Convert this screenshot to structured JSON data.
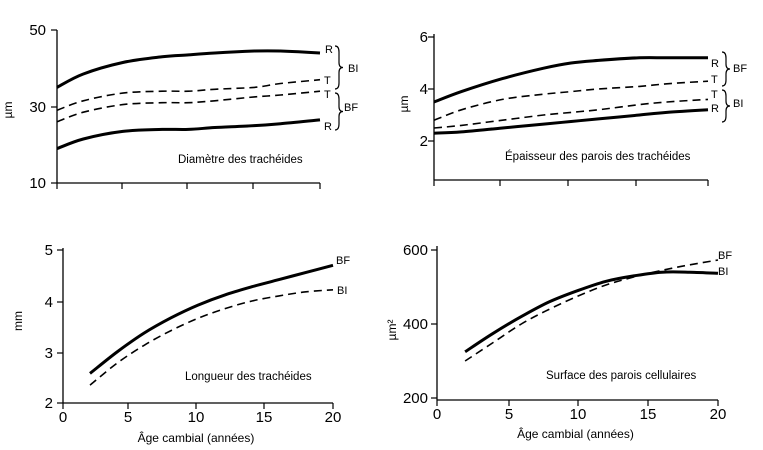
{
  "chart_data": [
    {
      "type": "line",
      "caption": "Diamètre des trachéides",
      "ylabel": "µm",
      "y_ticks": [
        "50",
        "30",
        "10"
      ],
      "ylim": [
        10,
        50
      ],
      "xlim": [
        0,
        20
      ],
      "x_tick_values": [
        0,
        5,
        10,
        15,
        20
      ],
      "x_tick_labels": [],
      "series": [
        {
          "label": "R",
          "style": "solid",
          "x": [
            0,
            2,
            5,
            8,
            10,
            12,
            15,
            17,
            20
          ],
          "values": [
            35,
            38.5,
            41.5,
            43,
            43.5,
            44,
            44.5,
            44.5,
            44
          ]
        },
        {
          "label": "T",
          "style": "dashed",
          "x": [
            0,
            2,
            5,
            8,
            10,
            12,
            15,
            17,
            20
          ],
          "values": [
            29,
            31.5,
            33.5,
            34,
            34,
            34.5,
            35,
            36,
            37
          ]
        },
        {
          "label": "T",
          "style": "dashed",
          "x": [
            0,
            2,
            5,
            8,
            10,
            12,
            15,
            17,
            20
          ],
          "values": [
            26,
            28.5,
            30.5,
            31,
            31,
            31.5,
            32.5,
            33,
            34
          ]
        },
        {
          "label": "R",
          "style": "solid",
          "x": [
            0,
            2,
            5,
            8,
            10,
            12,
            15,
            17,
            20
          ],
          "values": [
            19,
            21.5,
            23.5,
            24,
            24,
            24.5,
            25,
            25.5,
            26.5
          ]
        }
      ],
      "groups": [
        {
          "label": "BI",
          "members": [
            0,
            1
          ]
        },
        {
          "label": "BF",
          "members": [
            2,
            3
          ]
        }
      ]
    },
    {
      "type": "line",
      "caption": "Épaisseur des parois des trachéides",
      "ylabel": "µm",
      "y_ticks": [
        "6",
        "4",
        "2"
      ],
      "ylim": [
        1,
        6.5
      ],
      "xlim": [
        0,
        20
      ],
      "x_tick_values": [
        0,
        5,
        10,
        15,
        20
      ],
      "x_tick_labels": [],
      "series": [
        {
          "label": "R",
          "style": "solid",
          "x": [
            0,
            2,
            5,
            8,
            10,
            12,
            15,
            17,
            20
          ],
          "values": [
            3.5,
            3.9,
            4.4,
            4.8,
            5.0,
            5.1,
            5.2,
            5.2,
            5.2
          ]
        },
        {
          "label": "T",
          "style": "dashed",
          "x": [
            0,
            2,
            5,
            8,
            10,
            12,
            15,
            17,
            20
          ],
          "values": [
            2.8,
            3.2,
            3.6,
            3.8,
            3.9,
            4.0,
            4.1,
            4.2,
            4.3
          ]
        },
        {
          "label": "T",
          "style": "dashed",
          "x": [
            0,
            2,
            5,
            8,
            10,
            12,
            15,
            17,
            20
          ],
          "values": [
            2.5,
            2.6,
            2.8,
            3.0,
            3.1,
            3.2,
            3.4,
            3.5,
            3.6
          ]
        },
        {
          "label": "R",
          "style": "solid",
          "x": [
            0,
            2,
            5,
            8,
            10,
            12,
            15,
            17,
            20
          ],
          "values": [
            2.3,
            2.35,
            2.5,
            2.65,
            2.75,
            2.85,
            3.0,
            3.1,
            3.2
          ]
        }
      ],
      "groups": [
        {
          "label": "BF",
          "members": [
            0,
            1
          ]
        },
        {
          "label": "BI",
          "members": [
            2,
            3
          ]
        }
      ]
    },
    {
      "type": "line",
      "caption": "Longueur des trachéides",
      "ylabel": "mm",
      "y_ticks": [
        "5",
        "4",
        "3",
        "2"
      ],
      "ylim": [
        2,
        5
      ],
      "xlim": [
        0,
        20
      ],
      "x_tick_values": [
        0,
        5,
        10,
        15,
        20
      ],
      "x_tick_labels": [
        "0",
        "5",
        "10",
        "15",
        "20"
      ],
      "series": [
        {
          "label": "BF",
          "style": "solid",
          "x": [
            2,
            4,
            6,
            8,
            10,
            12,
            14,
            16,
            18,
            20
          ],
          "values": [
            2.58,
            3.0,
            3.37,
            3.67,
            3.92,
            4.12,
            4.28,
            4.42,
            4.56,
            4.7
          ]
        },
        {
          "label": "BI",
          "style": "dashed",
          "x": [
            2,
            4,
            6,
            8,
            10,
            12,
            14,
            16,
            18,
            20
          ],
          "values": [
            2.35,
            2.78,
            3.13,
            3.42,
            3.66,
            3.85,
            4.0,
            4.1,
            4.18,
            4.22
          ]
        }
      ],
      "groups": []
    },
    {
      "type": "line",
      "caption": "Surface des parois cellulaires",
      "ylabel": "µm²",
      "y_ticks": [
        "600",
        "400",
        "200"
      ],
      "ylim": [
        200,
        600
      ],
      "xlim": [
        0,
        20
      ],
      "x_tick_values": [
        0,
        5,
        10,
        15,
        20
      ],
      "x_tick_labels": [
        "0",
        "5",
        "10",
        "15",
        "20"
      ],
      "series": [
        {
          "label": "BF",
          "style": "solid",
          "x": [
            2,
            4,
            6,
            8,
            10,
            12,
            14,
            16,
            18,
            20
          ],
          "values": [
            325,
            375,
            420,
            460,
            490,
            515,
            530,
            540,
            540,
            537
          ]
        },
        {
          "label": "BI",
          "style": "dashed",
          "x": [
            2,
            4,
            6,
            8,
            10,
            12,
            14,
            16,
            18,
            20
          ],
          "values": [
            300,
            350,
            400,
            440,
            475,
            505,
            527,
            545,
            560,
            573
          ]
        }
      ],
      "groups": []
    }
  ],
  "x_axis_label": "Âge cambial (années)"
}
